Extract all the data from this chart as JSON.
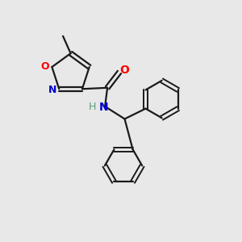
{
  "background_color": "#e8e8e8",
  "bond_color": "#1a1a1a",
  "atom_colors": {
    "O": "#ff0000",
    "N": "#0000cd",
    "C": "#1a1a1a",
    "H": "#5a9a7a"
  },
  "figsize": [
    3.0,
    3.0
  ],
  "dpi": 100,
  "xlim": [
    0,
    10
  ],
  "ylim": [
    0,
    10
  ]
}
